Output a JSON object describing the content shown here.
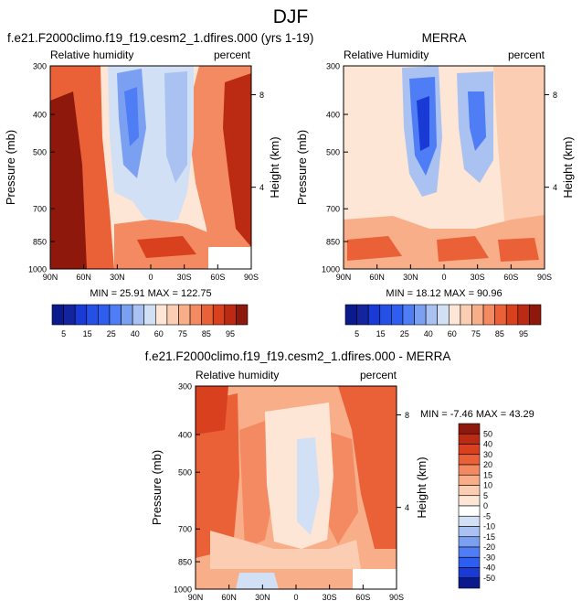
{
  "title": "DJF",
  "panels": {
    "model": {
      "title": "f.e21.F2000climo.f19_f19.cesm2_1.dfires.000 (yrs 1-19)",
      "left_label": "Relative humidity",
      "right_label": "percent",
      "stats": "MIN = 25.91   MAX = 122.75"
    },
    "obs": {
      "title": "MERRA",
      "left_label": "Relative Humidity",
      "right_label": "percent",
      "stats": "MIN = 18.12   MAX = 90.96"
    },
    "diff": {
      "title": "f.e21.F2000climo.f19_f19.cesm2_1.dfires.000 - MERRA",
      "left_label": "Relative humidity",
      "right_label": "percent",
      "stats": "MIN = -7.46   MAX = 43.29"
    }
  },
  "axes": {
    "ylabel": "Pressure (mb)",
    "ylabel_right": "Height (km)",
    "xticks": [
      "90N",
      "60N",
      "30N",
      "0",
      "30S",
      "60S",
      "90S"
    ],
    "yticks": [
      "300",
      "400",
      "500",
      "700",
      "850",
      "1000"
    ],
    "yticks_right": [
      "8",
      "4"
    ]
  },
  "colors": {
    "blue_ramp": [
      "#0a1a8c",
      "#1a3ad6",
      "#2e5ef0",
      "#4f7df5",
      "#7ba0f2",
      "#a9c2f2",
      "#d2e0f5"
    ],
    "red_ramp": [
      "#fde6d5",
      "#fbcdb2",
      "#f9ae8a",
      "#f48a62",
      "#ea6138",
      "#d9401d",
      "#bb2b13",
      "#8e180b"
    ],
    "missing": "#ffffff"
  },
  "chart_data": [
    {
      "type": "heatmap",
      "name": "model",
      "title": "f.e21.F2000climo.f19_f19.cesm2_1.dfires.000 (yrs 1-19)",
      "xlabel": "",
      "ylabel": "Pressure (mb)",
      "x_ticks": [
        "90N",
        "60N",
        "30N",
        "0",
        "30S",
        "60S",
        "90S"
      ],
      "x_range": [
        90,
        -90
      ],
      "y_range": [
        1000,
        300
      ],
      "y_ticks": [
        300,
        400,
        500,
        700,
        850,
        1000
      ],
      "z_units": "percent",
      "min": 25.91,
      "max": 122.75,
      "levels": [
        5,
        10,
        15,
        20,
        25,
        30,
        35,
        40,
        50,
        60,
        65,
        70,
        75,
        80,
        85,
        90,
        95
      ]
    },
    {
      "type": "heatmap",
      "name": "obs",
      "title": "MERRA",
      "xlabel": "",
      "ylabel": "Pressure (mb)",
      "x_ticks": [
        "90N",
        "60N",
        "30N",
        "0",
        "30S",
        "60S",
        "90S"
      ],
      "x_range": [
        90,
        -90
      ],
      "y_range": [
        1000,
        300
      ],
      "y_ticks": [
        300,
        400,
        500,
        700,
        850,
        1000
      ],
      "z_units": "percent",
      "min": 18.12,
      "max": 90.96,
      "levels": [
        5,
        10,
        15,
        20,
        25,
        30,
        35,
        40,
        50,
        60,
        65,
        70,
        75,
        80,
        85,
        90,
        95
      ]
    },
    {
      "type": "heatmap",
      "name": "diff",
      "title": "f.e21.F2000climo.f19_f19.cesm2_1.dfires.000 - MERRA",
      "xlabel": "",
      "ylabel": "Pressure (mb)",
      "x_ticks": [
        "90N",
        "60N",
        "30N",
        "0",
        "30S",
        "60S",
        "90S"
      ],
      "x_range": [
        90,
        -90
      ],
      "y_range": [
        1000,
        300
      ],
      "y_ticks": [
        300,
        400,
        500,
        700,
        850,
        1000
      ],
      "z_units": "percent",
      "min": -7.46,
      "max": 43.29,
      "levels": [
        -50,
        -40,
        -30,
        -20,
        -15,
        -10,
        -5,
        0,
        5,
        10,
        15,
        20,
        30,
        40,
        50
      ]
    }
  ],
  "colorbars": {
    "abs": {
      "colors": [
        "#0a1a8c",
        "#12259f",
        "#1a3ad6",
        "#2450e6",
        "#2e5ef0",
        "#4f7df5",
        "#7ba0f2",
        "#a9c2f2",
        "#d2e0f5",
        "#fde6d5",
        "#fbcdb2",
        "#f9ae8a",
        "#f48a62",
        "#ea6138",
        "#d9401d",
        "#bb2b13",
        "#8e180b"
      ],
      "labels": [
        "5",
        "15",
        "25",
        "40",
        "60",
        "75",
        "85",
        "95"
      ]
    },
    "diff": {
      "colors": [
        "#0a1a8c",
        "#1a3ad6",
        "#2e5ef0",
        "#4f7df5",
        "#7ba0f2",
        "#a9c2f2",
        "#d2e0f5",
        "#ffffff",
        "#fde6d5",
        "#fbcdb2",
        "#f9ae8a",
        "#f48a62",
        "#ea6138",
        "#d9401d",
        "#bb2b13",
        "#8e180b"
      ],
      "labels": [
        "50",
        "40",
        "30",
        "20",
        "15",
        "10",
        "5",
        "0",
        "-5",
        "-10",
        "-15",
        "-20",
        "-30",
        "-40",
        "-50"
      ]
    }
  }
}
